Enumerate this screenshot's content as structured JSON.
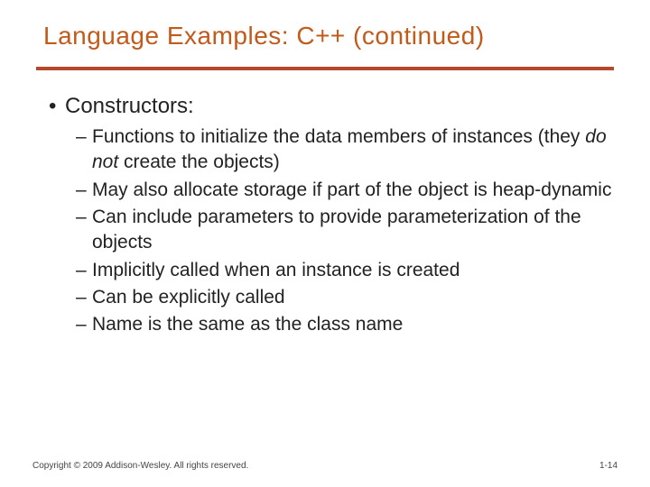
{
  "colors": {
    "title": "#c25a1c",
    "rule": "#b5482a",
    "text": "#222222"
  },
  "title": "Language Examples: C++ (continued)",
  "heading": "Constructors:",
  "items": [
    {
      "pre": "Functions to initialize the data members of instances (they ",
      "em": "do not",
      "post": " create the objects)"
    },
    {
      "pre": "May also allocate storage if part of the object is heap-dynamic",
      "em": "",
      "post": ""
    },
    {
      "pre": "Can include parameters to provide parameterization of the objects",
      "em": "",
      "post": ""
    },
    {
      "pre": "Implicitly called when an instance is created",
      "em": "",
      "post": ""
    },
    {
      "pre": "Can be explicitly called",
      "em": "",
      "post": ""
    },
    {
      "pre": "Name is the same as the class name",
      "em": "",
      "post": ""
    }
  ],
  "footer": {
    "left": "Copyright © 2009 Addison-Wesley. All rights reserved.",
    "right": "1-14"
  }
}
